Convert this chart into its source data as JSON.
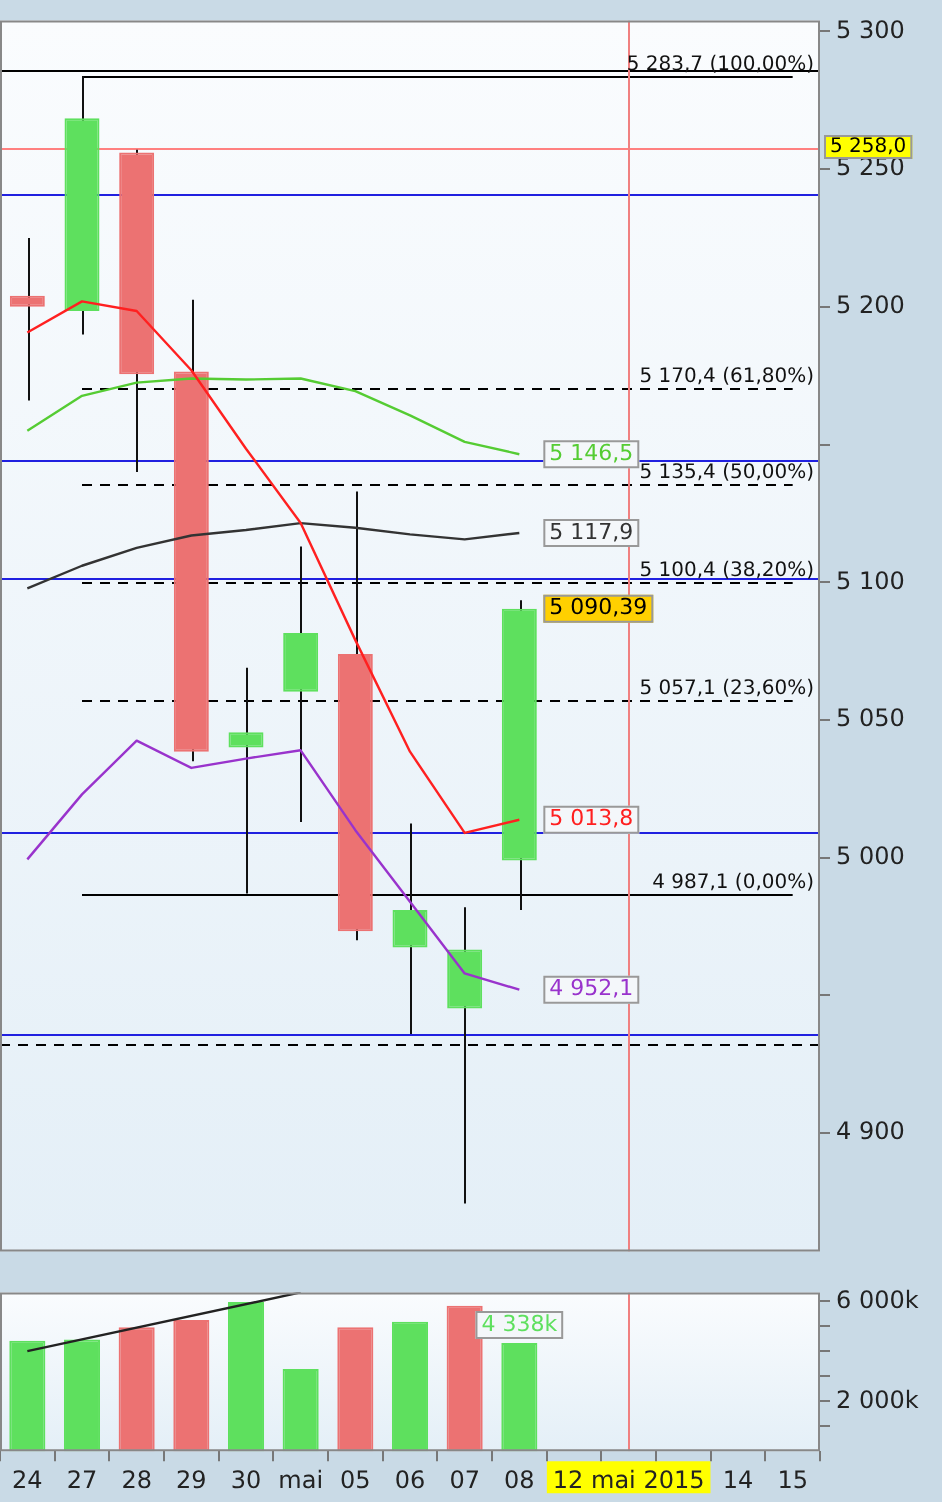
{
  "chart_data": [
    {
      "type": "candlestick",
      "categories": [
        "24",
        "27",
        "28",
        "29",
        "30",
        "mai",
        "05",
        "06",
        "07",
        "08",
        null,
        "12 mai 2015",
        null,
        "14",
        "15"
      ],
      "ohlc": [
        [
          5204,
          5225,
          5166,
          5200
        ],
        [
          5198.5,
          5283.7,
          5190,
          5268.5
        ],
        [
          5256,
          5257,
          5140,
          5175.5
        ],
        [
          5176.5,
          5202.6,
          5035,
          5038.5
        ],
        [
          5040,
          5069,
          4987,
          5045.6
        ],
        [
          5060.3,
          5113,
          5013,
          5081.6
        ],
        [
          5074,
          5133,
          4970,
          4973.3
        ],
        [
          4967.4,
          5012.4,
          4936,
          4981
        ],
        [
          4945.3,
          4982,
          4874.5,
          4966.7
        ],
        [
          4999,
          5093.5,
          4981,
          5090.39
        ],
        null,
        null,
        null,
        null,
        null
      ],
      "colors": [
        "#ec7272",
        "#5ee05e",
        "#ec7272",
        "#ec7272",
        "#5ee05e",
        "#5ee05e",
        "#ec7272",
        "#5ee05e",
        "#5ee05e",
        "#5ee05e",
        null,
        null,
        null,
        null,
        null
      ],
      "series": [
        {
          "type": "line",
          "color": "#ff2020",
          "values": [
            5190.7,
            5202,
            5198.5,
            5177,
            5148.5,
            5121.5,
            5079,
            5038.5,
            5009,
            5013.8,
            null,
            null,
            null,
            null,
            null
          ],
          "value_labels": [
            null,
            null,
            null,
            null,
            null,
            null,
            null,
            null,
            null,
            "5 013,8",
            null,
            null,
            null,
            null,
            null
          ]
        },
        {
          "type": "line",
          "color": "#55cc33",
          "values": [
            5155,
            5167.7,
            5172.5,
            5174,
            5173.6,
            5174,
            5169.4,
            5160.6,
            5151,
            5146.5,
            null,
            null,
            null,
            null,
            null
          ],
          "value_labels": [
            null,
            null,
            null,
            null,
            null,
            null,
            null,
            null,
            null,
            "5 146,5",
            null,
            null,
            null,
            null,
            null
          ]
        },
        {
          "type": "line",
          "color": "#333333",
          "values": [
            5097.8,
            5106,
            5112.5,
            5117,
            5119,
            5121.5,
            5119.8,
            5117.4,
            5115.6,
            5117.9,
            null,
            null,
            null,
            null,
            null
          ],
          "value_labels": [
            null,
            null,
            null,
            null,
            null,
            null,
            null,
            null,
            null,
            "5 117,9",
            null,
            null,
            null,
            null,
            null
          ]
        },
        {
          "type": "line",
          "color": "#9933cc",
          "values": [
            4999.4,
            5023,
            5042.5,
            5032.6,
            5036,
            5039,
            5010,
            4984,
            4958,
            4952.1,
            null,
            null,
            null,
            null,
            null
          ],
          "value_labels": [
            null,
            null,
            null,
            null,
            null,
            null,
            null,
            null,
            null,
            "4 952,1",
            null,
            null,
            null,
            null,
            null
          ]
        }
      ],
      "ylim": [
        4857,
        5304
      ],
      "yticks": [
        {
          "value": 4900,
          "label": "4 900"
        },
        {
          "value": 4950,
          "label": null
        },
        {
          "value": 5000,
          "label": "5 000"
        },
        {
          "value": 5050,
          "label": "5 050"
        },
        {
          "value": 5100,
          "label": "5 100"
        },
        {
          "value": 5150,
          "label": null
        },
        {
          "value": 5200,
          "label": "5 200"
        },
        {
          "value": 5250,
          "label": "5 250"
        },
        {
          "value": 5300,
          "label": "5 300"
        }
      ],
      "ref_lines": [
        {
          "axis": "y",
          "value": 5286.3,
          "color": "#000000"
        },
        {
          "axis": "y",
          "value": 5283.7,
          "label": "5 283,7 (100,00%)",
          "color": "#000000"
        },
        {
          "axis": "y",
          "value": 5258,
          "label": "5 258,0",
          "color": "#ff8080"
        },
        {
          "axis": "y",
          "value": 5240.8,
          "color": "#2020e0"
        },
        {
          "axis": "y",
          "value": 5170.4,
          "label": "5 170,4 (61,80%)",
          "color": "#000000",
          "line_style": "dashed"
        },
        {
          "axis": "y",
          "value": 5144.7,
          "color": "#2020e0"
        },
        {
          "axis": "y",
          "value": 5135.4,
          "label": "5 135,4 (50,00%)",
          "color": "#000000",
          "line_style": "dashed"
        },
        {
          "axis": "y",
          "value": 5101.3,
          "color": "#2020e0"
        },
        {
          "axis": "y",
          "value": 5100.4,
          "label": "5 100,4 (38,20%)",
          "color": "#000000",
          "line_style": "dashed"
        },
        {
          "axis": "y",
          "value": 5057.1,
          "label": "5 057,1 (23,60%)",
          "color": "#000000",
          "line_style": "dashed"
        },
        {
          "axis": "y",
          "value": 5009.6,
          "color": "#2020e0"
        },
        {
          "axis": "y",
          "value": 4987.1,
          "label": "4 987,1 (0,00%)",
          "color": "#000000"
        },
        {
          "axis": "y",
          "value": 4935.8,
          "color": "#2020e0"
        },
        {
          "axis": "y",
          "value": 4932.3,
          "color": "#000000",
          "line_style": "dashed"
        },
        {
          "axis": "x",
          "value": "12 mai 2015",
          "color": "#f08080"
        }
      ],
      "annotations": [
        {
          "text": "5 090,39",
          "x": "08",
          "y": 5090.39
        }
      ],
      "tick_labels": "y"
    },
    {
      "type": "bar",
      "categories": [
        "24",
        "27",
        "28",
        "29",
        "30",
        "mai",
        "05",
        "06",
        "07",
        "08",
        null,
        "12 mai 2015",
        null,
        "14",
        "15"
      ],
      "series": [
        {
          "values": [
            4420,
            4470,
            4960,
            5250,
            5980,
            3290,
            4960,
            5180,
            5830,
            4338,
            null,
            null,
            null,
            null,
            null
          ],
          "colors": [
            "#5ee05e",
            "#5ee05e",
            "#ec7272",
            "#ec7272",
            "#5ee05e",
            "#5ee05e",
            "#ec7272",
            "#5ee05e",
            "#ec7272",
            "#5ee05e",
            null,
            null,
            null,
            null,
            null
          ],
          "value_labels": [
            null,
            null,
            null,
            null,
            null,
            null,
            null,
            null,
            null,
            "4 338k",
            null,
            null,
            null,
            null,
            null
          ]
        },
        {
          "type": "line",
          "color": "#222222",
          "values": [
            4010,
            null,
            null,
            null,
            null,
            6360,
            null,
            null,
            null,
            null,
            null,
            null,
            null,
            null,
            null
          ]
        }
      ],
      "ylim": [
        0,
        6360
      ],
      "yticks": [
        {
          "value": 1000,
          "label": null
        },
        {
          "value": 2000,
          "label": "2 000k"
        },
        {
          "value": 3000,
          "label": null
        },
        {
          "value": 4000,
          "label": null
        },
        {
          "value": 5000,
          "label": null
        },
        {
          "value": 6000,
          "label": "6 000k"
        }
      ],
      "ref_lines": [
        {
          "axis": "x",
          "value": "12 mai 2015",
          "color": "#f08080"
        }
      ]
    }
  ]
}
